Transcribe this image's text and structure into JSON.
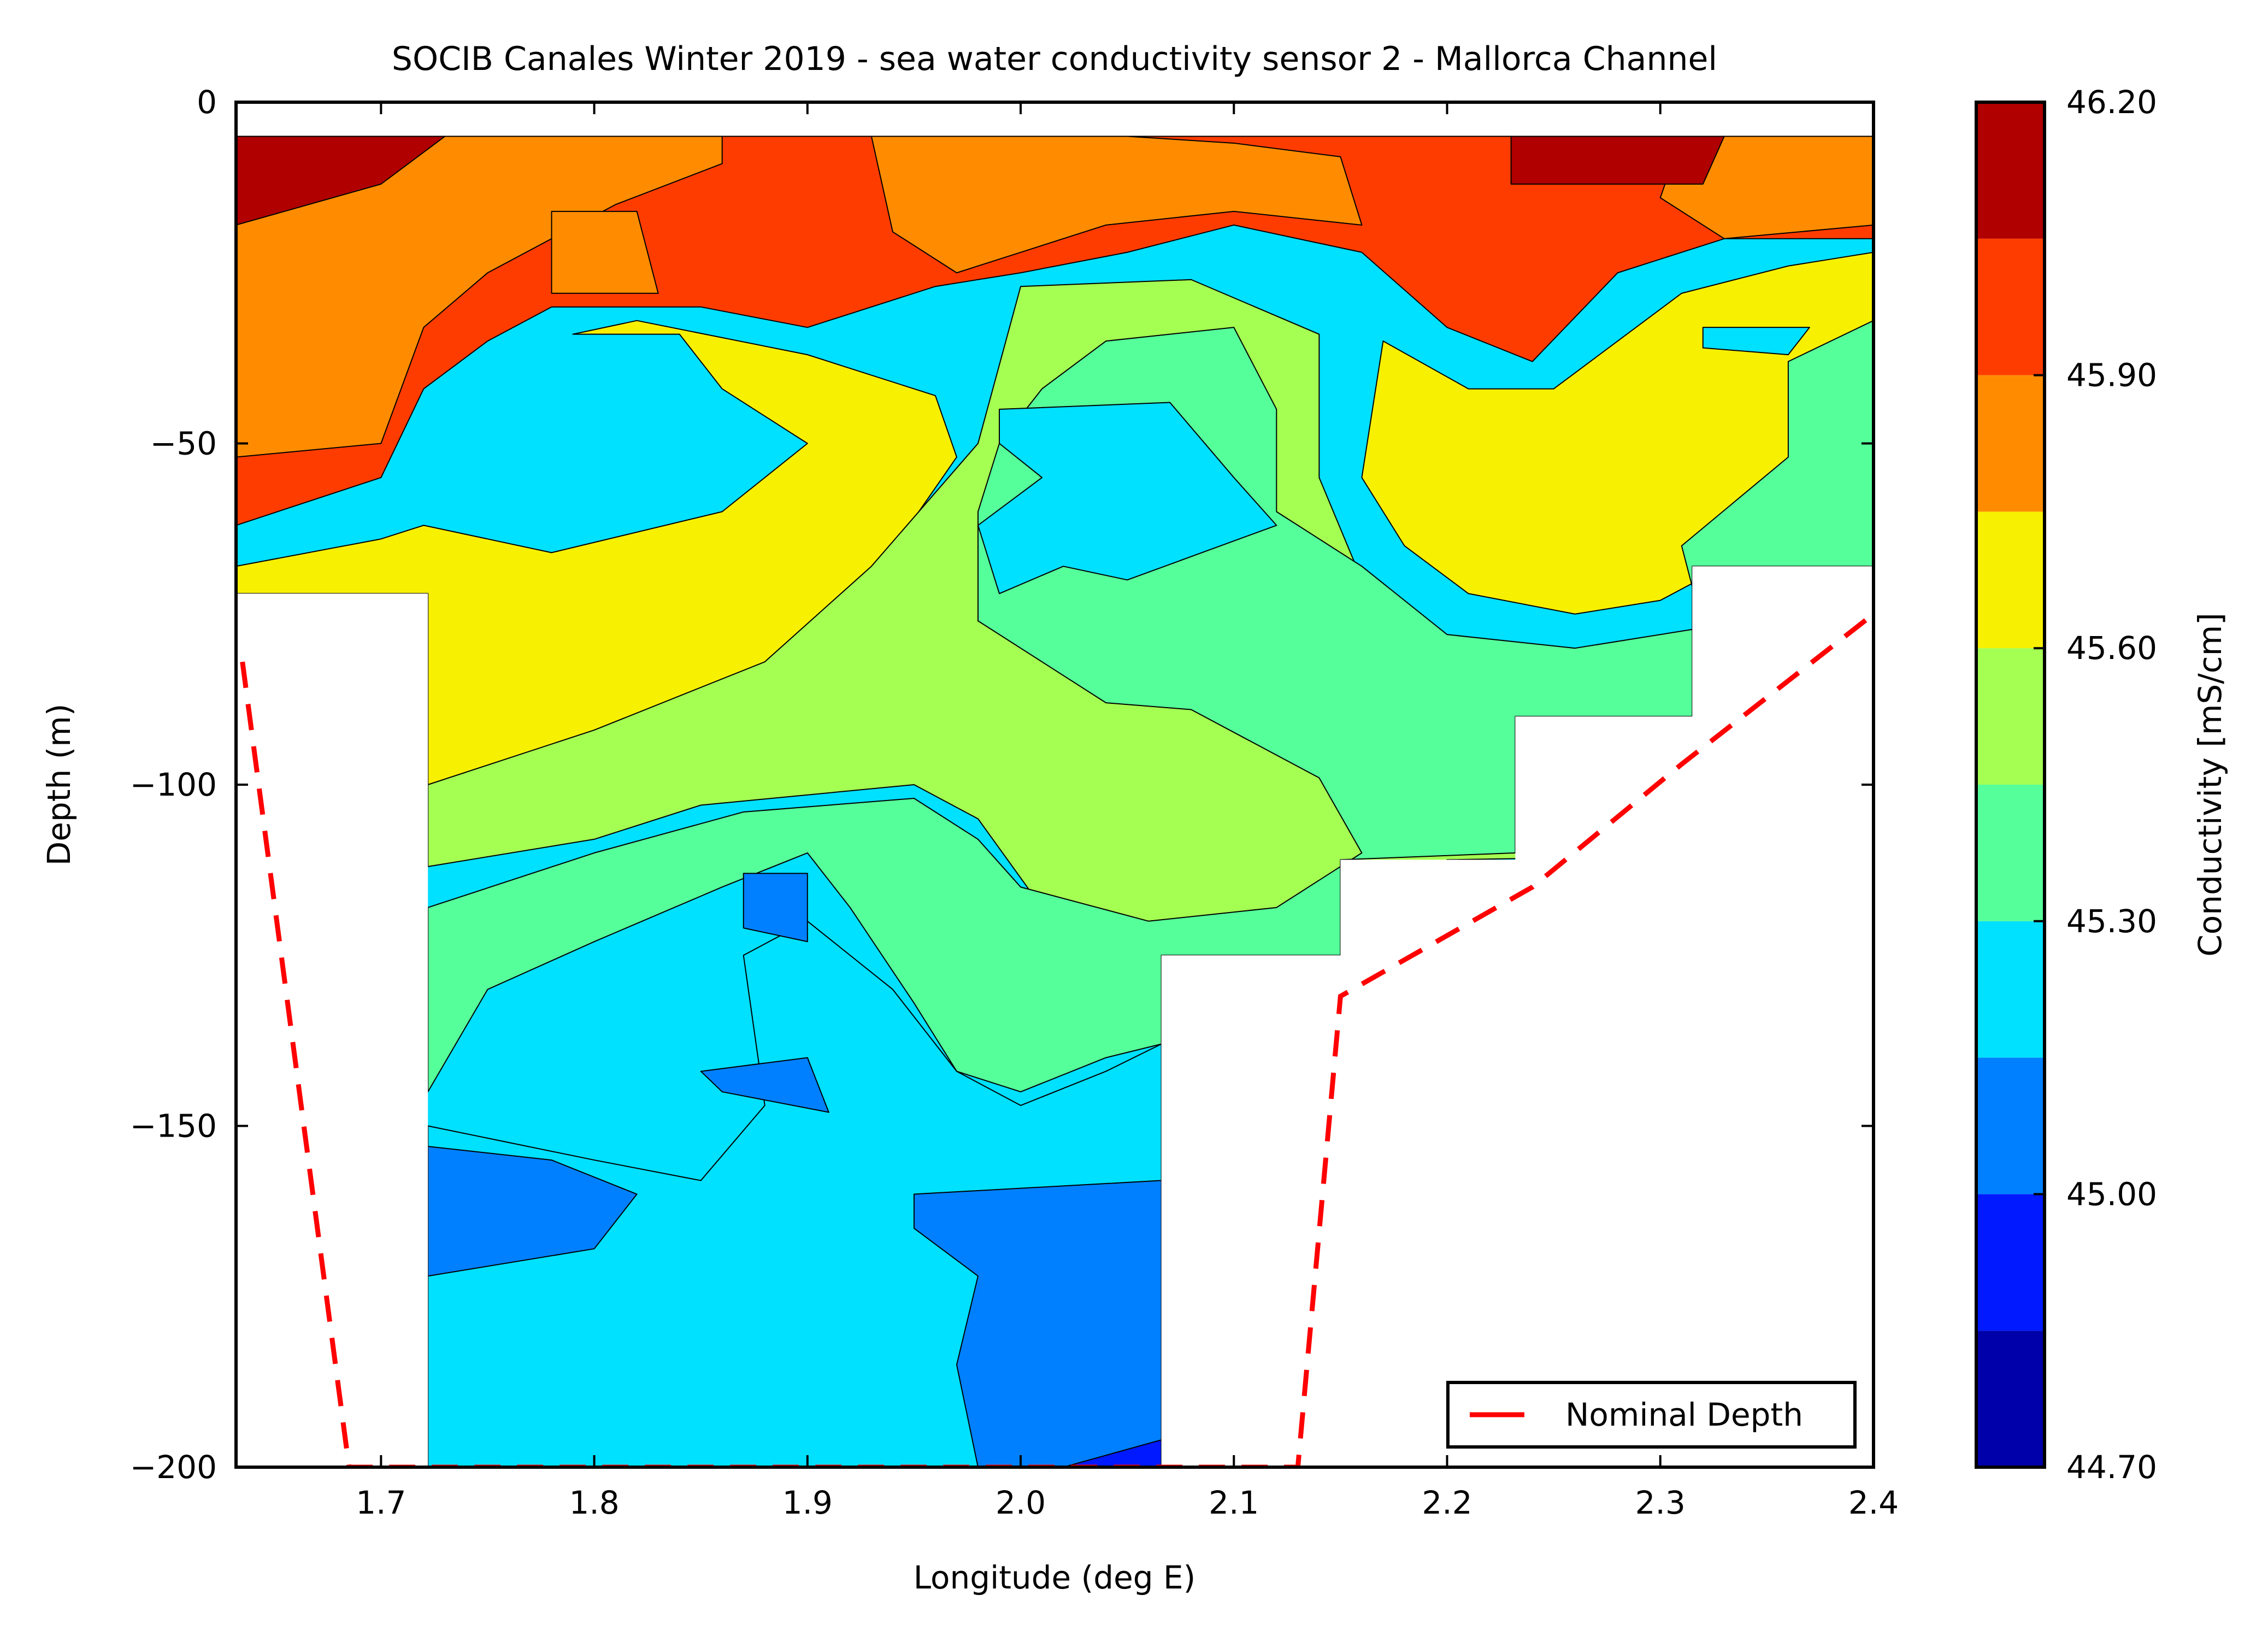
{
  "chart_data": {
    "type": "heatmap",
    "title": "SOCIB Canales Winter 2019 - sea water conductivity sensor 2  -  Mallorca Channel",
    "xlabel": "Longitude (deg E)",
    "ylabel": "Depth (m)",
    "xlim": [
      1.632,
      2.4
    ],
    "ylim": [
      -200,
      0
    ],
    "xticks": [
      1.7,
      1.8,
      1.9,
      2.0,
      2.1,
      2.2,
      2.3,
      2.4
    ],
    "xtick_labels": [
      "1.7",
      "1.8",
      "1.9",
      "2.0",
      "2.1",
      "2.2",
      "2.3",
      "2.4"
    ],
    "yticks": [
      0,
      -50,
      -100,
      -150,
      -200
    ],
    "ytick_labels": [
      "0",
      "−50",
      "−100",
      "−150",
      "−200"
    ],
    "colorbar": {
      "label": "Conductivity [mS/cm]",
      "levels": [
        44.7,
        44.85,
        45.0,
        45.15,
        45.3,
        45.45,
        45.6,
        45.75,
        45.9,
        46.05,
        46.2
      ],
      "colors": [
        "#0000aa",
        "#0019ff",
        "#0080ff",
        "#00e0ff",
        "#55ff9a",
        "#a4ff52",
        "#f7f000",
        "#ff8c00",
        "#ff3c00",
        "#b00000"
      ],
      "tick_values": [
        44.7,
        45.0,
        45.3,
        45.6,
        45.9,
        46.2
      ],
      "tick_labels": [
        "44.70",
        "45.00",
        "45.30",
        "45.60",
        "45.90",
        "46.20"
      ]
    },
    "legend": {
      "entries": [
        "Nominal Depth"
      ],
      "placement": "lower-right"
    },
    "nominal_depth": {
      "name": "Nominal Depth",
      "color": "#ff0000",
      "x": [
        1.635,
        1.685,
        2.13,
        2.15,
        2.24,
        2.31,
        2.4
      ],
      "y": [
        -82,
        -200,
        -200,
        -131,
        -115,
        -97,
        -75
      ]
    },
    "bottom_profile": {
      "x": [
        1.632,
        1.722,
        1.722,
        2.066,
        2.066,
        2.15,
        2.15,
        2.232,
        2.232,
        2.315,
        2.315,
        2.4
      ],
      "y": [
        -72,
        -72,
        -200,
        -200,
        -125,
        -125,
        -111,
        -111,
        -90,
        -90,
        -68,
        -68
      ]
    },
    "surface_depth": -5,
    "regions": [
      {
        "level": 45.9,
        "points": [
          [
            1.632,
            -5
          ],
          [
            2.4,
            -5
          ],
          [
            2.4,
            -20
          ],
          [
            2.33,
            -20
          ],
          [
            2.28,
            -25
          ],
          [
            2.24,
            -38
          ],
          [
            2.2,
            -33
          ],
          [
            2.16,
            -22
          ],
          [
            2.1,
            -18
          ],
          [
            2.05,
            -22
          ],
          [
            2.0,
            -25
          ],
          [
            1.96,
            -27
          ],
          [
            1.9,
            -33
          ],
          [
            1.85,
            -30
          ],
          [
            1.78,
            -30
          ],
          [
            1.75,
            -35
          ],
          [
            1.72,
            -42
          ],
          [
            1.7,
            -55
          ],
          [
            1.632,
            -62
          ]
        ]
      },
      {
        "level": 45.75,
        "points": [
          [
            1.632,
            -5
          ],
          [
            1.86,
            -5
          ],
          [
            1.86,
            -9
          ],
          [
            1.81,
            -15
          ],
          [
            1.75,
            -25
          ],
          [
            1.72,
            -33
          ],
          [
            1.7,
            -50
          ],
          [
            1.632,
            -52
          ]
        ]
      },
      {
        "level": 45.75,
        "points": [
          [
            1.93,
            -5
          ],
          [
            2.05,
            -5
          ],
          [
            2.1,
            -6
          ],
          [
            2.15,
            -8
          ],
          [
            2.16,
            -18
          ],
          [
            2.1,
            -16
          ],
          [
            2.04,
            -18
          ],
          [
            2.0,
            -22
          ],
          [
            1.97,
            -25
          ],
          [
            1.94,
            -19
          ]
        ]
      },
      {
        "level": 45.75,
        "points": [
          [
            2.31,
            -5
          ],
          [
            2.4,
            -5
          ],
          [
            2.4,
            -18
          ],
          [
            2.33,
            -20
          ],
          [
            2.3,
            -14
          ]
        ]
      },
      {
        "level": 45.75,
        "points": [
          [
            1.78,
            -16
          ],
          [
            1.82,
            -16
          ],
          [
            1.83,
            -28
          ],
          [
            1.78,
            -28
          ]
        ]
      },
      {
        "level": 46.05,
        "points": [
          [
            1.632,
            -5
          ],
          [
            1.73,
            -5
          ],
          [
            1.7,
            -12
          ],
          [
            1.632,
            -18
          ]
        ]
      },
      {
        "level": 46.05,
        "points": [
          [
            2.23,
            -5
          ],
          [
            2.33,
            -5
          ],
          [
            2.32,
            -12
          ],
          [
            2.23,
            -12
          ]
        ]
      },
      {
        "level": 45.75,
        "points": [
          [
            2.23,
            -48
          ],
          [
            2.25,
            -50
          ],
          [
            2.24,
            -56
          ],
          [
            2.22,
            -55
          ]
        ]
      },
      {
        "level": 45.75,
        "points": [
          [
            2.23,
            -57
          ],
          [
            2.25,
            -60
          ],
          [
            2.24,
            -68
          ],
          [
            2.22,
            -66
          ]
        ]
      },
      {
        "level": 45.6,
        "points": [
          [
            1.79,
            -34
          ],
          [
            1.84,
            -34
          ],
          [
            1.86,
            -42
          ],
          [
            1.9,
            -50
          ],
          [
            1.86,
            -60
          ],
          [
            1.78,
            -66
          ],
          [
            1.72,
            -62
          ],
          [
            1.7,
            -64
          ],
          [
            1.632,
            -68
          ],
          [
            1.632,
            -72
          ],
          [
            1.722,
            -72
          ],
          [
            1.722,
            -108
          ],
          [
            1.8,
            -98
          ],
          [
            1.88,
            -85
          ],
          [
            1.93,
            -70
          ],
          [
            1.97,
            -52
          ],
          [
            1.96,
            -43
          ],
          [
            1.9,
            -37
          ],
          [
            1.82,
            -32
          ]
        ]
      },
      {
        "level": 45.6,
        "points": [
          [
            2.17,
            -35
          ],
          [
            2.21,
            -42
          ],
          [
            2.25,
            -42
          ],
          [
            2.28,
            -35
          ],
          [
            2.31,
            -28
          ],
          [
            2.36,
            -24
          ],
          [
            2.4,
            -22
          ],
          [
            2.4,
            -45
          ],
          [
            2.35,
            -58
          ],
          [
            2.33,
            -68
          ],
          [
            2.3,
            -73
          ],
          [
            2.26,
            -75
          ],
          [
            2.21,
            -72
          ],
          [
            2.18,
            -65
          ],
          [
            2.16,
            -55
          ]
        ]
      },
      {
        "level": 45.6,
        "points": [
          [
            2.0,
            -88
          ],
          [
            2.08,
            -87
          ],
          [
            2.14,
            -92
          ],
          [
            2.16,
            -95
          ],
          [
            2.12,
            -100
          ],
          [
            2.07,
            -107
          ],
          [
            2.03,
            -103
          ],
          [
            1.99,
            -98
          ]
        ]
      },
      {
        "level": 45.45,
        "points": [
          [
            2.0,
            -27
          ],
          [
            2.08,
            -26
          ],
          [
            2.14,
            -34
          ],
          [
            2.14,
            -55
          ],
          [
            2.16,
            -70
          ],
          [
            2.2,
            -80
          ],
          [
            2.26,
            -82
          ],
          [
            2.32,
            -80
          ],
          [
            2.4,
            -80
          ],
          [
            2.4,
            -110
          ],
          [
            2.2,
            -111
          ],
          [
            2.15,
            -120
          ],
          [
            2.08,
            -123
          ],
          [
            2.01,
            -118
          ],
          [
            1.98,
            -105
          ],
          [
            1.95,
            -100
          ],
          [
            1.85,
            -103
          ],
          [
            1.8,
            -108
          ],
          [
            1.722,
            -112
          ],
          [
            1.722,
            -100
          ],
          [
            1.8,
            -92
          ],
          [
            1.88,
            -82
          ],
          [
            1.93,
            -68
          ],
          [
            1.98,
            -50
          ]
        ]
      },
      {
        "level": 45.3,
        "points": [
          [
            2.04,
            -35
          ],
          [
            2.1,
            -33
          ],
          [
            2.12,
            -45
          ],
          [
            2.12,
            -60
          ],
          [
            2.16,
            -68
          ],
          [
            2.2,
            -78
          ],
          [
            2.26,
            -80
          ],
          [
            2.32,
            -77
          ],
          [
            2.31,
            -65
          ],
          [
            2.36,
            -52
          ],
          [
            2.36,
            -38
          ],
          [
            2.4,
            -32
          ],
          [
            2.4,
            -68
          ],
          [
            2.315,
            -68
          ],
          [
            2.315,
            -90
          ],
          [
            2.232,
            -90
          ],
          [
            2.232,
            -110
          ],
          [
            2.15,
            -111
          ],
          [
            2.15,
            -125
          ],
          [
            2.066,
            -125
          ],
          [
            2.066,
            -138
          ],
          [
            2.04,
            -140
          ],
          [
            2.0,
            -145
          ],
          [
            1.97,
            -142
          ],
          [
            1.95,
            -132
          ],
          [
            1.92,
            -118
          ],
          [
            1.9,
            -110
          ],
          [
            1.86,
            -115
          ],
          [
            1.8,
            -123
          ],
          [
            1.75,
            -130
          ],
          [
            1.722,
            -145
          ],
          [
            1.722,
            -118
          ],
          [
            1.8,
            -110
          ],
          [
            1.87,
            -104
          ],
          [
            1.95,
            -102
          ],
          [
            1.98,
            -108
          ],
          [
            2.0,
            -115
          ],
          [
            2.06,
            -120
          ],
          [
            2.12,
            -118
          ],
          [
            2.16,
            -110
          ],
          [
            2.14,
            -99
          ],
          [
            2.08,
            -89
          ],
          [
            2.04,
            -88
          ],
          [
            2.01,
            -82
          ],
          [
            1.98,
            -76
          ],
          [
            1.98,
            -60
          ],
          [
            1.99,
            -50
          ],
          [
            2.01,
            -42
          ]
        ]
      },
      {
        "level": 45.15,
        "points": [
          [
            1.99,
            -45
          ],
          [
            2.07,
            -44
          ],
          [
            2.1,
            -55
          ],
          [
            2.12,
            -62
          ],
          [
            2.05,
            -70
          ],
          [
            2.02,
            -68
          ],
          [
            1.99,
            -72
          ],
          [
            1.98,
            -62
          ],
          [
            2.01,
            -55
          ],
          [
            1.99,
            -50
          ]
        ]
      },
      {
        "level": 45.15,
        "points": [
          [
            2.32,
            -33
          ],
          [
            2.37,
            -33
          ],
          [
            2.36,
            -37
          ],
          [
            2.32,
            -36
          ]
        ]
      },
      {
        "level": 45.15,
        "points": [
          [
            1.722,
            -150
          ],
          [
            1.8,
            -155
          ],
          [
            1.85,
            -158
          ],
          [
            1.88,
            -147
          ],
          [
            1.87,
            -125
          ],
          [
            1.9,
            -120
          ],
          [
            1.94,
            -130
          ],
          [
            1.97,
            -142
          ],
          [
            2.0,
            -147
          ],
          [
            2.04,
            -142
          ],
          [
            2.066,
            -138
          ],
          [
            2.066,
            -200
          ],
          [
            1.722,
            -200
          ]
        ]
      },
      {
        "level": 45.0,
        "points": [
          [
            1.722,
            -153
          ],
          [
            1.78,
            -155
          ],
          [
            1.82,
            -160
          ],
          [
            1.8,
            -168
          ],
          [
            1.722,
            -172
          ]
        ]
      },
      {
        "level": 45.0,
        "points": [
          [
            1.95,
            -160
          ],
          [
            2.066,
            -158
          ],
          [
            2.066,
            -200
          ],
          [
            1.98,
            -200
          ],
          [
            1.97,
            -185
          ],
          [
            1.98,
            -172
          ],
          [
            1.95,
            -165
          ]
        ]
      },
      {
        "level": 45.0,
        "points": [
          [
            1.87,
            -113
          ],
          [
            1.9,
            -113
          ],
          [
            1.9,
            -123
          ],
          [
            1.87,
            -121
          ]
        ]
      },
      {
        "level": 45.0,
        "points": [
          [
            1.85,
            -142
          ],
          [
            1.9,
            -140
          ],
          [
            1.91,
            -148
          ],
          [
            1.86,
            -145
          ]
        ]
      },
      {
        "level": 44.85,
        "points": [
          [
            2.02,
            -200
          ],
          [
            2.066,
            -196
          ],
          [
            2.066,
            -200
          ]
        ]
      }
    ]
  }
}
